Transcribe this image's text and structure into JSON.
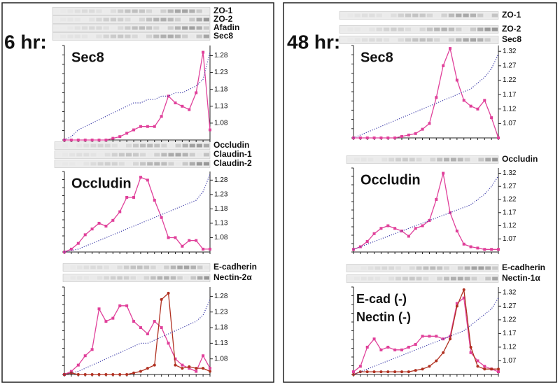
{
  "panels": [
    {
      "label": "6 hr:",
      "blots": [
        "ZO-1",
        "ZO-2",
        "Afadin",
        "Sec8",
        "Occludin",
        "Claudin-1",
        "Claudin-2",
        "E-cadherin",
        "Nectin-2α"
      ]
    },
    {
      "label": "48 hr:",
      "blots": [
        "ZO-1",
        "ZO-2",
        "Sec8",
        "Occludin",
        "E-cadherin",
        "Nectin-1α"
      ]
    }
  ],
  "chart_data": [
    {
      "type": "line",
      "title": "Sec8",
      "ylim": [
        1.03,
        1.31
      ],
      "yticks": [
        1.08,
        1.13,
        1.18,
        1.23,
        1.28
      ],
      "series": [
        {
          "color": "#e0409a",
          "marker": "square",
          "values": [
            1.03,
            1.03,
            1.03,
            1.03,
            1.03,
            1.03,
            1.03,
            1.035,
            1.04,
            1.05,
            1.06,
            1.07,
            1.07,
            1.07,
            1.1,
            1.16,
            1.14,
            1.13,
            1.12,
            1.17,
            1.29,
            1.06
          ]
        },
        {
          "color": "#3a3aa8",
          "style": "dotted",
          "values": [
            1.03,
            1.04,
            1.06,
            1.07,
            1.08,
            1.09,
            1.1,
            1.11,
            1.12,
            1.13,
            1.14,
            1.14,
            1.15,
            1.15,
            1.16,
            1.16,
            1.17,
            1.17,
            1.18,
            1.19,
            1.21,
            1.29
          ]
        }
      ]
    },
    {
      "type": "line",
      "title": "Occludin",
      "ylim": [
        1.03,
        1.31
      ],
      "yticks": [
        1.08,
        1.13,
        1.18,
        1.23,
        1.28
      ],
      "series": [
        {
          "color": "#e0409a",
          "marker": "square",
          "values": [
            1.03,
            1.04,
            1.06,
            1.09,
            1.11,
            1.13,
            1.12,
            1.14,
            1.17,
            1.22,
            1.22,
            1.29,
            1.28,
            1.21,
            1.15,
            1.08,
            1.08,
            1.05,
            1.07,
            1.07,
            1.04,
            1.04
          ]
        },
        {
          "color": "#3a3aa8",
          "style": "dotted",
          "values": [
            1.03,
            1.035,
            1.04,
            1.05,
            1.06,
            1.07,
            1.08,
            1.09,
            1.1,
            1.11,
            1.12,
            1.13,
            1.14,
            1.15,
            1.16,
            1.17,
            1.18,
            1.19,
            1.2,
            1.21,
            1.24,
            1.3
          ]
        }
      ]
    },
    {
      "type": "line",
      "ylim": [
        1.03,
        1.31
      ],
      "yticks": [
        1.08,
        1.13,
        1.18,
        1.23,
        1.28
      ],
      "series": [
        {
          "color": "#e0409a",
          "marker": "square",
          "values": [
            1.03,
            1.04,
            1.06,
            1.09,
            1.11,
            1.24,
            1.2,
            1.21,
            1.25,
            1.25,
            1.2,
            1.18,
            1.16,
            1.2,
            1.18,
            1.13,
            1.08,
            1.06,
            1.05,
            1.04,
            1.09,
            1.05
          ]
        },
        {
          "color": "#b03020",
          "marker": "circle",
          "values": [
            1.03,
            1.035,
            1.03,
            1.03,
            1.03,
            1.03,
            1.03,
            1.03,
            1.03,
            1.03,
            1.035,
            1.04,
            1.05,
            1.06,
            1.27,
            1.29,
            1.06,
            1.05,
            1.055,
            1.05,
            1.05,
            1.04
          ]
        },
        {
          "color": "#3a3aa8",
          "style": "dotted",
          "values": [
            1.03,
            1.035,
            1.04,
            1.05,
            1.06,
            1.07,
            1.08,
            1.09,
            1.1,
            1.11,
            1.12,
            1.13,
            1.13,
            1.14,
            1.15,
            1.16,
            1.17,
            1.18,
            1.19,
            1.2,
            1.22,
            1.27
          ]
        }
      ]
    },
    {
      "type": "line",
      "title": "Sec8",
      "ylim": [
        1.02,
        1.34
      ],
      "yticks": [
        1.07,
        1.12,
        1.17,
        1.22,
        1.27,
        1.32
      ],
      "series": [
        {
          "color": "#e0409a",
          "marker": "square",
          "values": [
            1.02,
            1.02,
            1.02,
            1.02,
            1.02,
            1.02,
            1.02,
            1.025,
            1.03,
            1.035,
            1.05,
            1.07,
            1.16,
            1.27,
            1.33,
            1.22,
            1.15,
            1.13,
            1.12,
            1.15,
            1.09,
            1.02
          ]
        },
        {
          "color": "#3a3aa8",
          "style": "dotted",
          "values": [
            1.02,
            1.03,
            1.04,
            1.05,
            1.06,
            1.07,
            1.08,
            1.09,
            1.1,
            1.11,
            1.12,
            1.13,
            1.14,
            1.15,
            1.16,
            1.17,
            1.18,
            1.19,
            1.21,
            1.23,
            1.26,
            1.31
          ]
        }
      ]
    },
    {
      "type": "line",
      "title": "Occludin",
      "ylim": [
        1.02,
        1.34
      ],
      "yticks": [
        1.07,
        1.12,
        1.17,
        1.22,
        1.27,
        1.32
      ],
      "series": [
        {
          "color": "#e0409a",
          "marker": "square",
          "values": [
            1.03,
            1.04,
            1.06,
            1.09,
            1.11,
            1.12,
            1.11,
            1.1,
            1.08,
            1.11,
            1.12,
            1.14,
            1.22,
            1.32,
            1.17,
            1.1,
            1.05,
            1.04,
            1.035,
            1.03,
            1.03,
            1.03
          ]
        },
        {
          "color": "#3a3aa8",
          "style": "dotted",
          "values": [
            1.03,
            1.04,
            1.05,
            1.06,
            1.07,
            1.08,
            1.09,
            1.1,
            1.11,
            1.12,
            1.13,
            1.14,
            1.15,
            1.16,
            1.17,
            1.18,
            1.19,
            1.2,
            1.22,
            1.24,
            1.27,
            1.31
          ]
        }
      ]
    },
    {
      "type": "line",
      "ylim": [
        1.02,
        1.34
      ],
      "yticks": [
        1.07,
        1.12,
        1.17,
        1.22,
        1.27,
        1.32
      ],
      "series": [
        {
          "name": "E-cad (-)",
          "color": "#e0409a",
          "marker": "square",
          "values": [
            1.03,
            1.05,
            1.12,
            1.15,
            1.11,
            1.12,
            1.11,
            1.11,
            1.12,
            1.13,
            1.16,
            1.16,
            1.16,
            1.15,
            1.16,
            1.28,
            1.3,
            1.1,
            1.07,
            1.05,
            1.04,
            1.03
          ]
        },
        {
          "name": "Nectin (-)",
          "color": "#b03020",
          "marker": "circle",
          "values": [
            1.02,
            1.03,
            1.03,
            1.03,
            1.03,
            1.03,
            1.03,
            1.03,
            1.03,
            1.035,
            1.04,
            1.05,
            1.07,
            1.1,
            1.15,
            1.27,
            1.33,
            1.12,
            1.05,
            1.04,
            1.04,
            1.04
          ]
        },
        {
          "color": "#3a3aa8",
          "style": "dotted",
          "values": [
            1.02,
            1.03,
            1.04,
            1.05,
            1.06,
            1.07,
            1.08,
            1.09,
            1.1,
            1.11,
            1.12,
            1.13,
            1.14,
            1.15,
            1.16,
            1.17,
            1.18,
            1.2,
            1.22,
            1.24,
            1.26,
            1.3
          ]
        }
      ]
    }
  ]
}
